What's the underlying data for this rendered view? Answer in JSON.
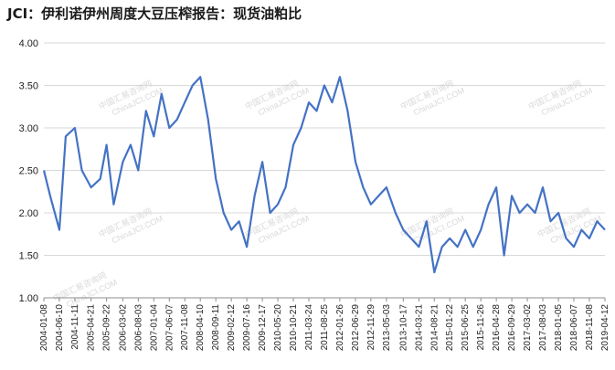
{
  "chart_data": {
    "type": "line",
    "title": "JCI：伊利诺伊州周度大豆压榨报告：现货油粕比",
    "xlabel": "",
    "ylabel": "",
    "ylim": [
      1.0,
      4.0
    ],
    "y_ticks": [
      "1.00",
      "1.50",
      "2.00",
      "2.50",
      "3.00",
      "3.50",
      "4.00"
    ],
    "grid": true,
    "legend": "none",
    "line_color": "#4472c4",
    "x_tick_labels": [
      "2004-01-08",
      "2004-06-10",
      "2004-11-11",
      "2005-04-21",
      "2005-09-22",
      "2006-03-02",
      "2006-08-03",
      "2007-01-04",
      "2007-06-07",
      "2007-11-08",
      "2008-04-10",
      "2008-09-11",
      "2009-02-12",
      "2009-07-16",
      "2009-12-17",
      "2010-05-20",
      "2010-10-21",
      "2011-03-24",
      "2011-08-25",
      "2012-01-26",
      "2012-06-29",
      "2012-11-29",
      "2013-05-03",
      "2013-10-17",
      "2014-03-21",
      "2014-08-21",
      "2015-01-22",
      "2015-06-25",
      "2015-11-26",
      "2016-04-28",
      "2016-09-29",
      "2017-03-02",
      "2017-08-03",
      "2018-01-05",
      "2018-06-07",
      "2018-11-08",
      "2019-04-12"
    ],
    "series": [
      {
        "x": [
          "2004-01-08",
          "2004-03-11",
          "2004-06-10",
          "2004-08-12",
          "2004-11-11",
          "2005-01-20",
          "2005-04-21",
          "2005-07-21",
          "2005-09-22",
          "2005-12-01",
          "2006-03-02",
          "2006-05-18",
          "2006-08-03",
          "2006-10-19",
          "2007-01-04",
          "2007-03-22",
          "2007-06-07",
          "2007-08-23",
          "2007-11-08",
          "2008-01-24",
          "2008-04-10",
          "2008-06-26",
          "2008-09-11",
          "2008-11-27",
          "2009-02-12",
          "2009-04-30",
          "2009-07-16",
          "2009-10-01",
          "2009-12-17",
          "2010-03-04",
          "2010-05-20",
          "2010-08-05",
          "2010-10-21",
          "2011-01-06",
          "2011-03-24",
          "2011-06-09",
          "2011-08-25",
          "2011-11-10",
          "2012-01-26",
          "2012-04-12",
          "2012-06-29",
          "2012-09-13",
          "2012-11-29",
          "2013-02-14",
          "2013-05-03",
          "2013-08-01",
          "2013-10-17",
          "2014-01-02",
          "2014-03-21",
          "2014-06-05",
          "2014-08-21",
          "2014-11-06",
          "2015-01-22",
          "2015-04-09",
          "2015-06-25",
          "2015-09-10",
          "2015-11-26",
          "2016-02-11",
          "2016-04-28",
          "2016-07-14",
          "2016-09-29",
          "2016-12-15",
          "2017-03-02",
          "2017-05-18",
          "2017-08-03",
          "2017-10-19",
          "2018-01-05",
          "2018-03-22",
          "2018-06-07",
          "2018-08-23",
          "2018-11-08",
          "2019-01-24",
          "2019-04-12"
        ],
        "y": [
          2.5,
          2.2,
          1.8,
          2.9,
          3.0,
          2.5,
          2.3,
          2.4,
          2.8,
          2.1,
          2.6,
          2.8,
          2.5,
          3.2,
          2.9,
          3.4,
          3.0,
          3.1,
          3.3,
          3.5,
          3.6,
          3.1,
          2.4,
          2.0,
          1.8,
          1.9,
          1.6,
          2.2,
          2.6,
          2.0,
          2.1,
          2.3,
          2.8,
          3.0,
          3.3,
          3.2,
          3.5,
          3.3,
          3.6,
          3.2,
          2.6,
          2.3,
          2.1,
          2.2,
          2.3,
          2.0,
          1.8,
          1.7,
          1.6,
          1.9,
          1.3,
          1.6,
          1.7,
          1.6,
          1.8,
          1.6,
          1.8,
          2.1,
          2.3,
          1.5,
          2.2,
          2.0,
          2.1,
          2.0,
          2.3,
          1.9,
          2.0,
          1.7,
          1.6,
          1.8,
          1.7,
          1.9,
          1.8
        ]
      }
    ]
  },
  "watermark": {
    "cn": "中国汇易咨询网",
    "en": "ChinaJCI.COM"
  }
}
